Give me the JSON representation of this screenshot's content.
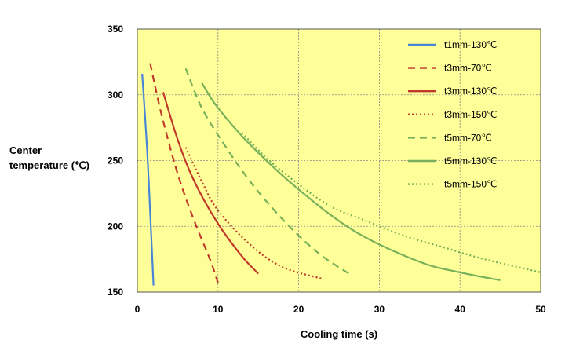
{
  "chart_data": {
    "type": "line",
    "xlabel": "Cooling time (s)",
    "ylabel": [
      "Center",
      "temperature (℃)"
    ],
    "xlim": [
      0,
      50
    ],
    "ylim": [
      150,
      350
    ],
    "xticks": [
      "0",
      "10",
      "20",
      "30",
      "40",
      "50"
    ],
    "yticks": [
      "150",
      "200",
      "250",
      "300",
      "350"
    ],
    "grid": true,
    "legend_position": "top-right",
    "plot_background": "#FFFF99",
    "series": [
      {
        "name": "t1mm-130℃",
        "color": "#4A86D8",
        "dash": "solid",
        "x": [
          0.6,
          1.2,
          1.6,
          2.0
        ],
        "y": [
          316,
          260,
          210,
          155
        ]
      },
      {
        "name": "t3mm-70℃",
        "color": "#C0392B",
        "dash": "dashed",
        "x": [
          1.6,
          3,
          5,
          7,
          9,
          10
        ],
        "y": [
          324,
          285,
          240,
          205,
          175,
          157
        ]
      },
      {
        "name": "t3mm-130℃",
        "color": "#C0392B",
        "dash": "solid",
        "x": [
          3.2,
          5,
          7,
          10,
          13,
          15
        ],
        "y": [
          302,
          266,
          235,
          202,
          177,
          164
        ]
      },
      {
        "name": "t3mm-150℃",
        "color": "#C0392B",
        "dash": "dotted",
        "x": [
          6,
          8,
          10,
          14,
          18,
          23
        ],
        "y": [
          260,
          234,
          212,
          186,
          169,
          160
        ]
      },
      {
        "name": "t5mm-70℃",
        "color": "#77B05A",
        "dash": "dashed",
        "x": [
          6,
          8,
          11,
          14,
          17,
          20,
          23,
          26.5
        ],
        "y": [
          320,
          290,
          260,
          234,
          212,
          193,
          177,
          163
        ]
      },
      {
        "name": "t5mm-130℃",
        "color": "#77B05A",
        "dash": "solid",
        "x": [
          8,
          10,
          14,
          20,
          27,
          35,
          40,
          45
        ],
        "y": [
          309,
          290,
          262,
          228,
          196,
          173,
          165,
          159
        ]
      },
      {
        "name": "t5mm-150℃",
        "color": "#77B05A",
        "dash": "dotted",
        "x": [
          13,
          16,
          20,
          24,
          28,
          33,
          38,
          43,
          50
        ],
        "y": [
          271,
          252,
          232,
          215,
          205,
          193,
          184,
          175,
          165
        ]
      }
    ]
  }
}
